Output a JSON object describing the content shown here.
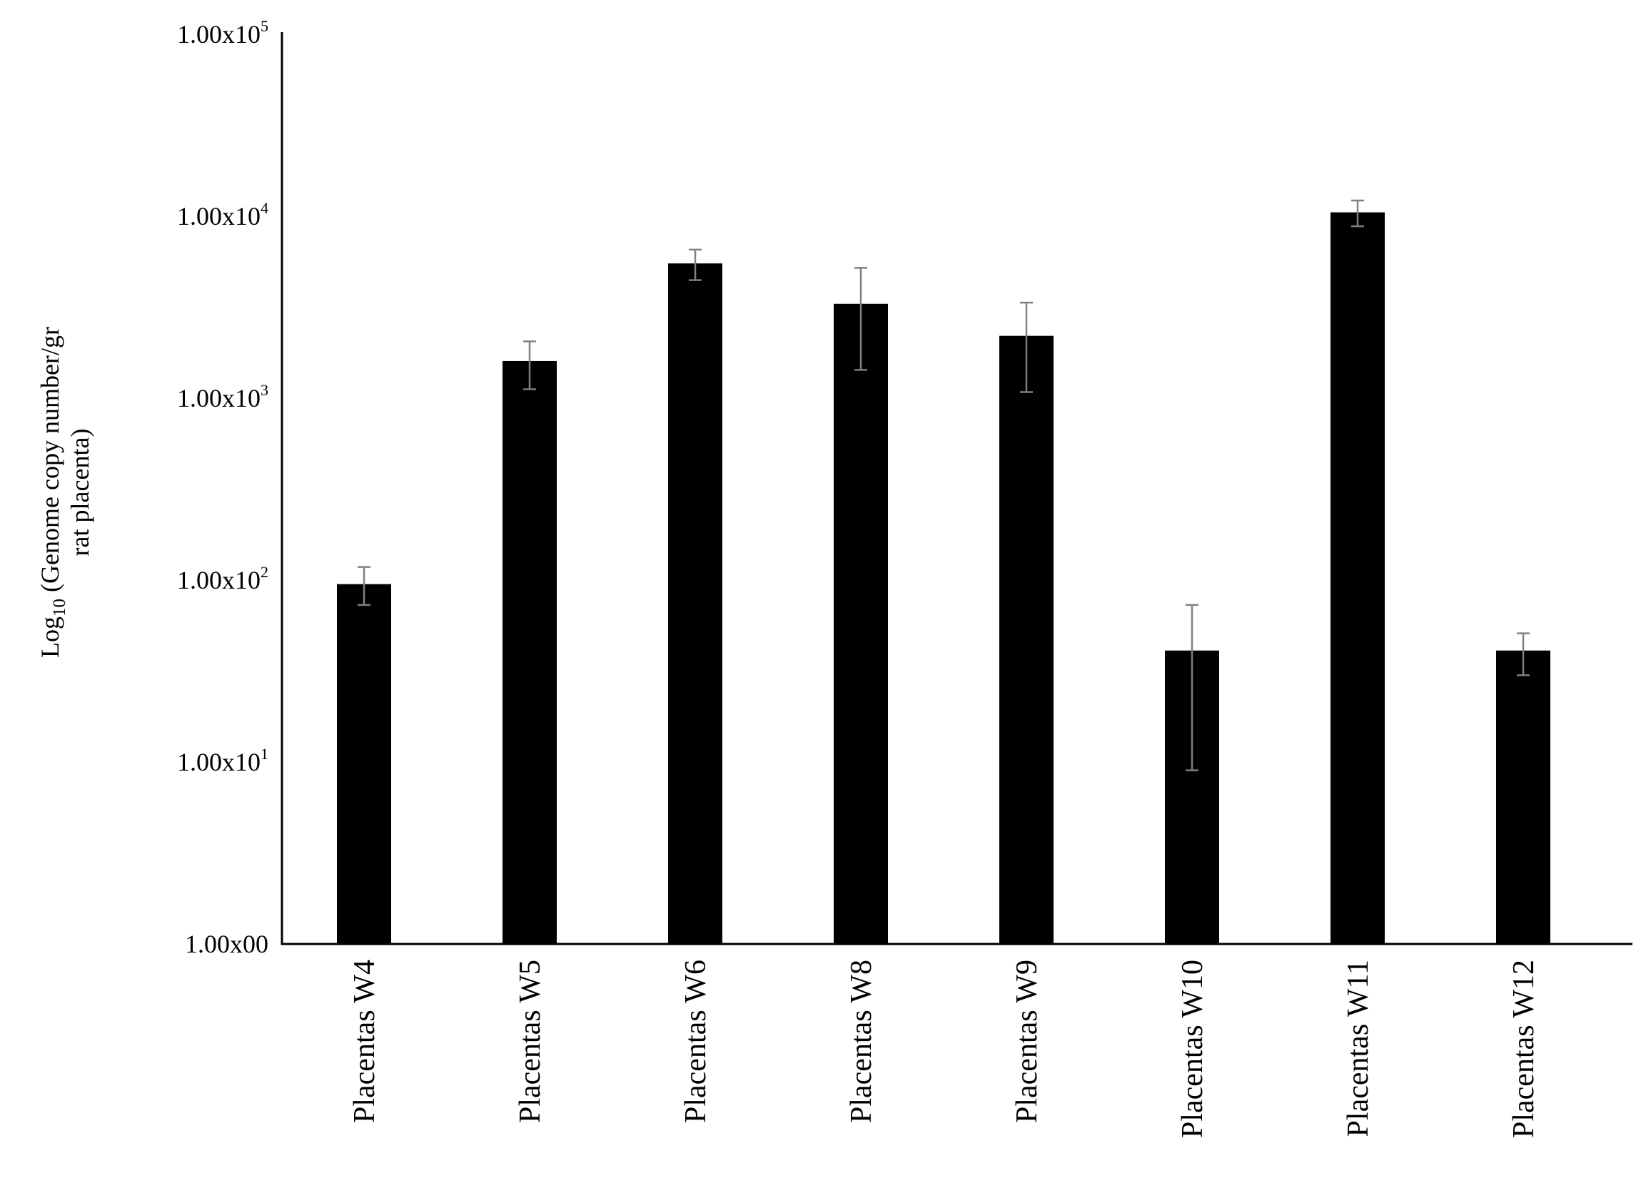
{
  "chart_data": {
    "type": "bar",
    "scale": "log",
    "categories": [
      "Placentas W4",
      "Placentas W5",
      "Placentas W6",
      "Placentas W8",
      "Placentas W9",
      "Placentas W10",
      "Placentas W11",
      "Placentas W12"
    ],
    "values": [
      95,
      1600,
      5500,
      3300,
      2200,
      41,
      10500,
      41
    ],
    "error_low": [
      73,
      1120,
      4450,
      1430,
      1080,
      9,
      8800,
      30
    ],
    "error_high": [
      118,
      2050,
      6550,
      5200,
      3350,
      73,
      12200,
      51
    ],
    "ylabel": {
      "prefix": "Log",
      "subscript": "10",
      "line1": " (Genome copy number/gr",
      "line2": "rat placenta)"
    },
    "ylim": [
      1,
      100000
    ],
    "ytick_labels": [
      {
        "value": 1,
        "base": "1.00x00",
        "sup": ""
      },
      {
        "value": 10,
        "base": "1.00x10",
        "sup": "1"
      },
      {
        "value": 100,
        "base": "1.00x10",
        "sup": "2"
      },
      {
        "value": 1000,
        "base": "1.00x10",
        "sup": "3"
      },
      {
        "value": 10000,
        "base": "1.00x10",
        "sup": "4"
      },
      {
        "value": 100000,
        "base": "1.00x10",
        "sup": "5"
      }
    ],
    "grid": false,
    "legend": "none",
    "colors": {
      "bar": "#000000",
      "error_bar": "#808080",
      "axis": "#000000"
    }
  }
}
